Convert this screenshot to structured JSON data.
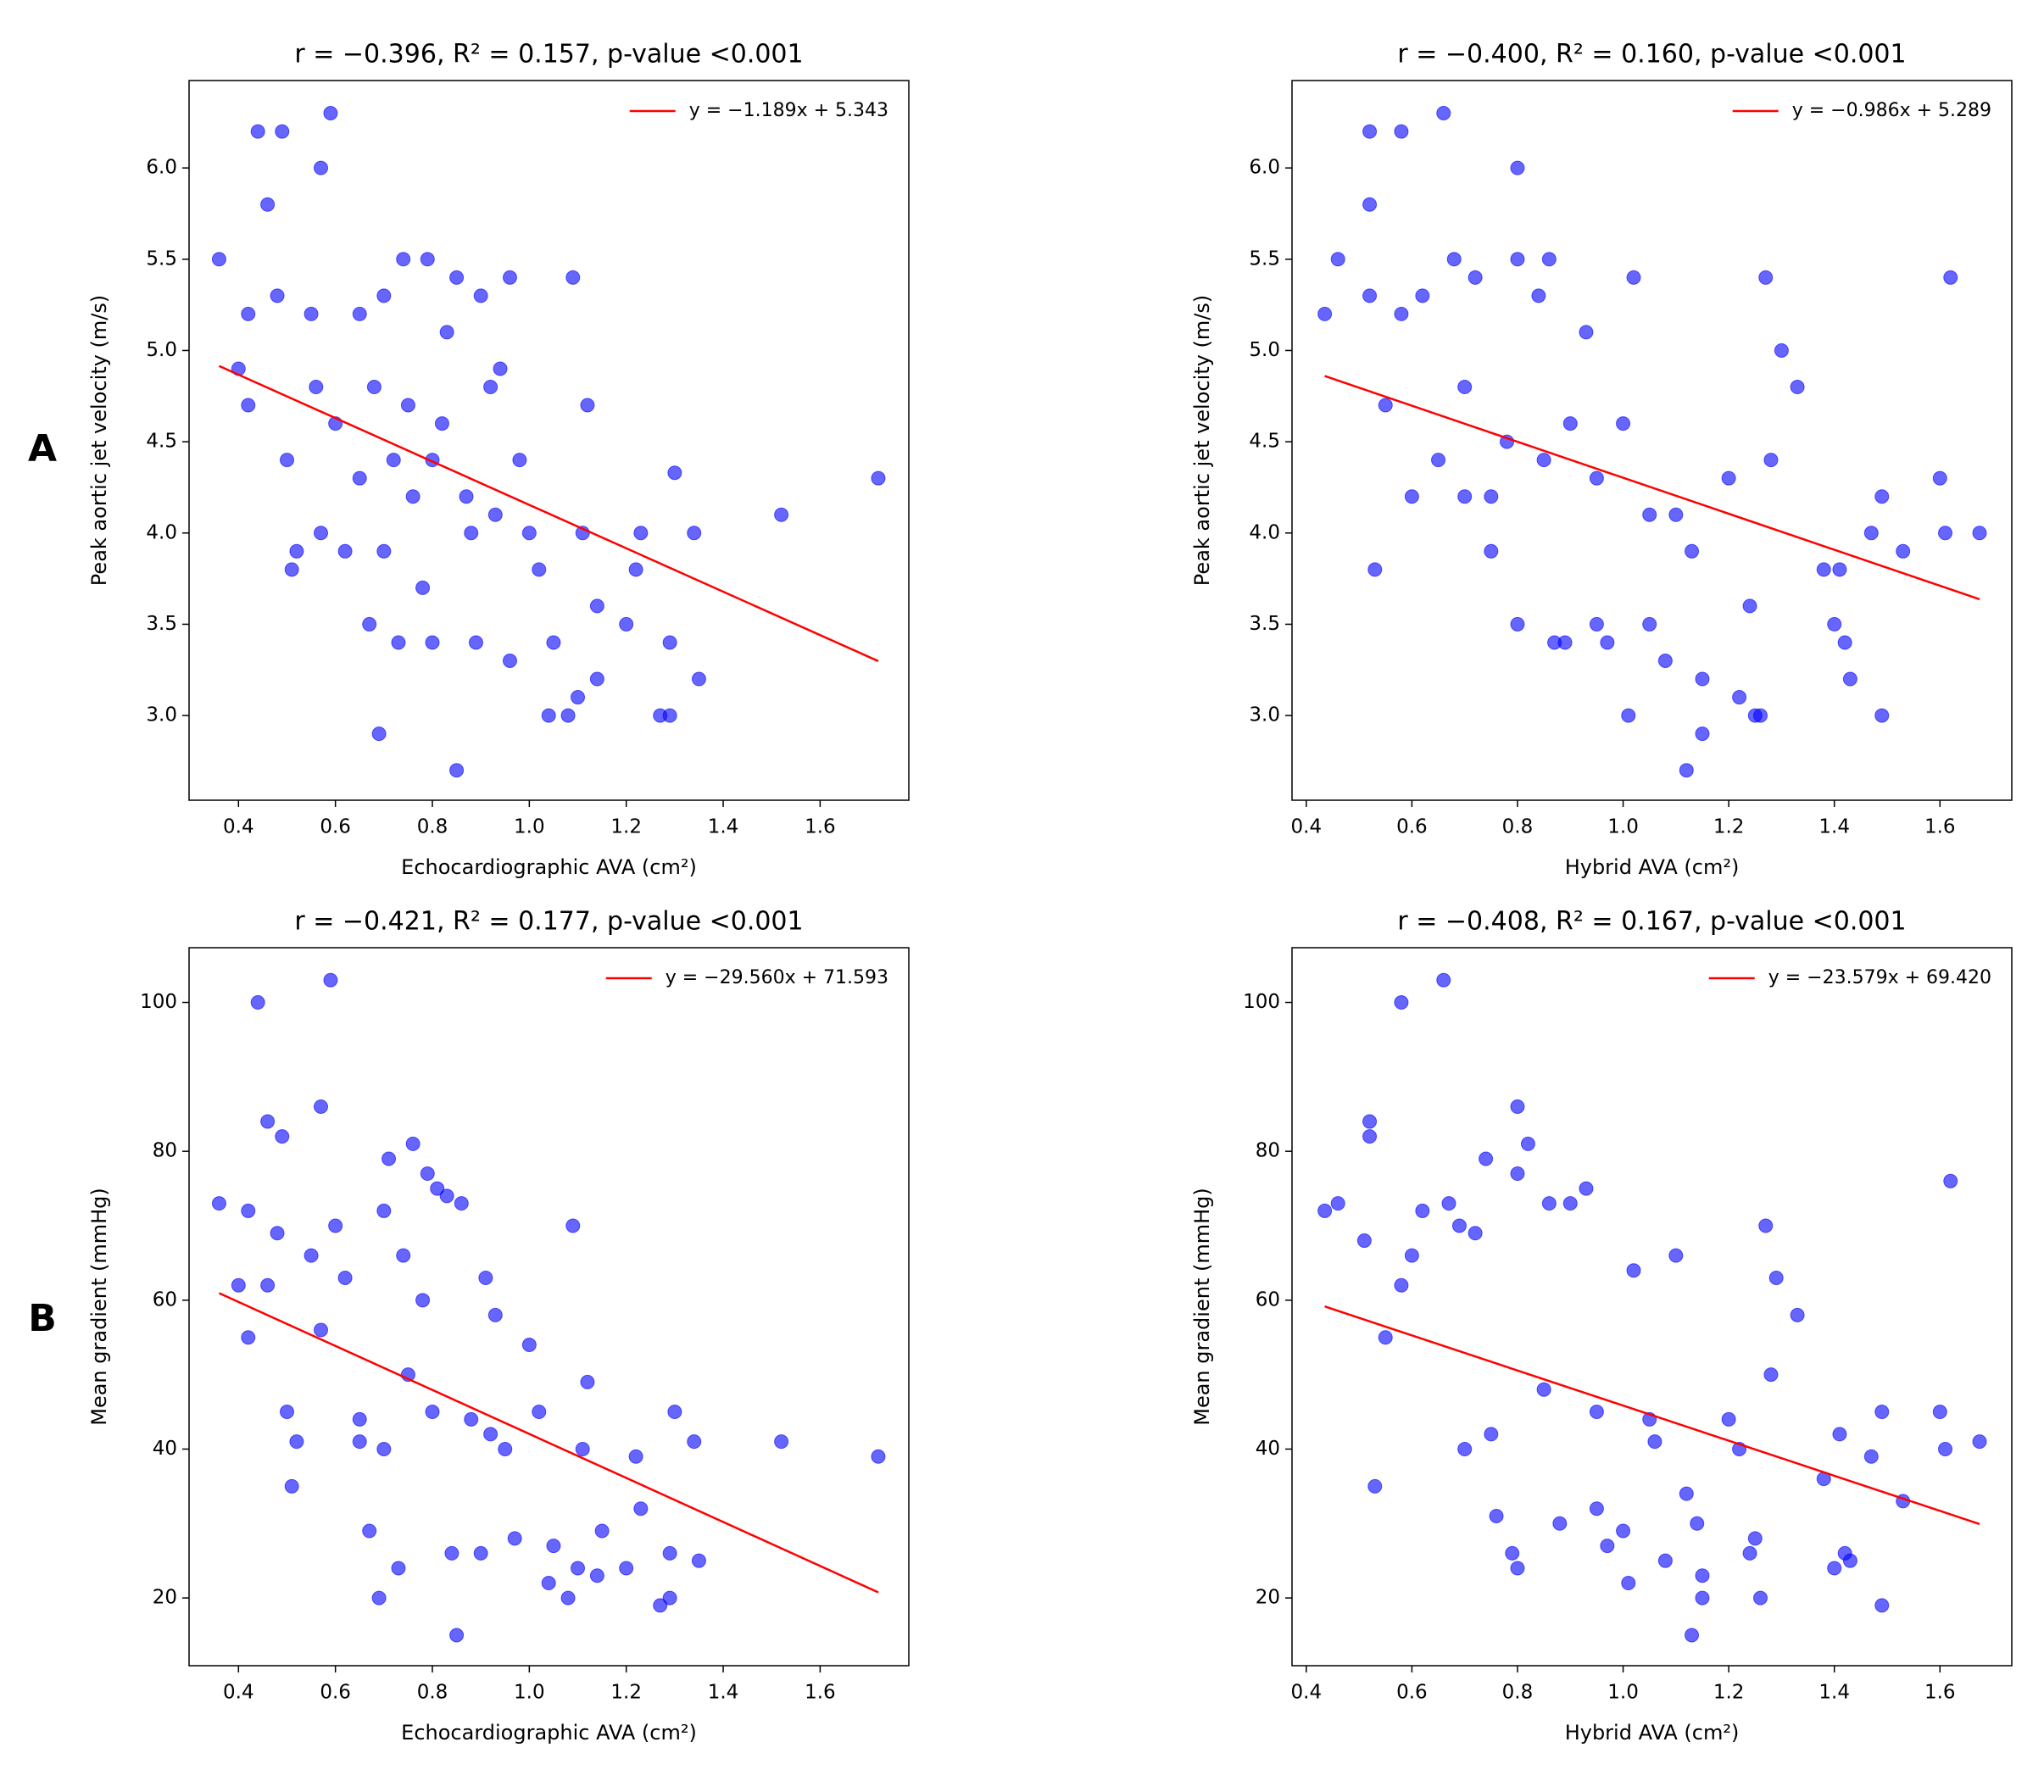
{
  "panel_labels": [
    "A",
    "B"
  ],
  "chart_data": [
    {
      "type": "scatter",
      "title": "r = −0.396, R² = 0.157, p-value <0.001",
      "xlabel": "Echocardiographic AVA (cm²)",
      "ylabel": "Peak aortic jet velocity (m/s)",
      "xlim": [
        0.298,
        1.783
      ],
      "ylim": [
        2.536,
        6.479
      ],
      "xticks": [
        0.4,
        0.6,
        0.8,
        {
          "value": 1,
          "label": "1.0"
        },
        1.2,
        1.4,
        1.6
      ],
      "yticks": [
        {
          "value": 3,
          "label": "3.0"
        },
        3.5,
        {
          "value": 4,
          "label": "4.0"
        },
        4.5,
        {
          "value": 5,
          "label": "5.0"
        },
        5.5,
        {
          "value": 6,
          "label": "6.0"
        }
      ],
      "color": "#0000ff",
      "legend": "upper right",
      "x": [
        0.36,
        0.44,
        0.49,
        0.46,
        0.57,
        0.59,
        0.4,
        0.42,
        0.42,
        0.48,
        0.5,
        0.51,
        0.52,
        0.55,
        0.56,
        0.57,
        0.6,
        0.62,
        0.65,
        0.67,
        0.69,
        0.7,
        0.72,
        0.73,
        0.74,
        0.76,
        0.78,
        0.79,
        0.8,
        0.82,
        0.83,
        0.85,
        0.85,
        0.87,
        0.89,
        0.9,
        0.92,
        0.94,
        0.96,
        0.96,
        0.98,
        1.0,
        1.02,
        1.04,
        1.05,
        1.08,
        1.09,
        1.1,
        1.11,
        1.12,
        1.14,
        1.14,
        1.2,
        1.22,
        1.23,
        1.27,
        1.29,
        1.29,
        1.3,
        1.34,
        1.35,
        1.52,
        1.72,
        0.65,
        0.75,
        0.88,
        0.93,
        0.7,
        0.8,
        0.68
      ],
      "y": [
        5.5,
        6.2,
        6.2,
        5.8,
        6.0,
        6.3,
        4.9,
        5.2,
        4.7,
        5.3,
        4.4,
        3.8,
        3.9,
        5.2,
        4.8,
        4.0,
        4.6,
        3.9,
        5.2,
        3.5,
        2.9,
        5.3,
        4.4,
        3.4,
        5.5,
        4.2,
        3.7,
        5.5,
        3.4,
        4.6,
        5.1,
        2.7,
        5.4,
        4.2,
        3.4,
        5.3,
        4.8,
        4.9,
        3.3,
        5.4,
        4.4,
        4.0,
        3.8,
        3.0,
        3.4,
        3.0,
        5.4,
        3.1,
        4.0,
        4.7,
        3.2,
        3.6,
        3.5,
        3.8,
        4.0,
        3.0,
        3.0,
        3.4,
        4.33,
        4.0,
        3.2,
        4.1,
        4.3,
        4.3,
        4.7,
        4.0,
        4.1,
        3.9,
        4.4,
        4.8
      ],
      "fit": {
        "name": "y = −1.189x + 5.343",
        "color": "#ff0000",
        "x": [
          0.36,
          1.72
        ],
        "y": [
          4.915,
          3.298
        ]
      }
    },
    {
      "type": "scatter",
      "title": "r = −0.400, R² = 0.160, p-value <0.001",
      "xlabel": "Hybrid AVA (cm²)",
      "ylabel": "Peak aortic jet velocity (m/s)",
      "xlim": [
        0.373,
        1.736
      ],
      "ylim": [
        2.536,
        6.479
      ],
      "xticks": [
        0.4,
        0.6,
        0.8,
        {
          "value": 1,
          "label": "1.0"
        },
        1.2,
        1.4,
        1.6
      ],
      "yticks": [
        {
          "value": 3,
          "label": "3.0"
        },
        3.5,
        {
          "value": 4,
          "label": "4.0"
        },
        4.5,
        {
          "value": 5,
          "label": "5.0"
        },
        5.5,
        {
          "value": 6,
          "label": "6.0"
        }
      ],
      "color": "#0000ff",
      "legend": "upper right",
      "x": [
        0.435,
        0.46,
        0.52,
        0.58,
        0.52,
        0.66,
        0.8,
        0.53,
        0.52,
        0.55,
        0.58,
        0.6,
        0.62,
        0.65,
        0.68,
        0.7,
        0.72,
        0.75,
        0.78,
        0.8,
        0.8,
        0.84,
        0.86,
        0.87,
        0.89,
        0.9,
        0.93,
        0.95,
        0.97,
        1.0,
        1.01,
        1.02,
        1.05,
        1.08,
        1.1,
        1.12,
        1.13,
        1.15,
        1.15,
        1.2,
        1.22,
        1.24,
        1.25,
        1.26,
        1.27,
        1.28,
        1.3,
        1.33,
        1.38,
        1.4,
        1.41,
        1.42,
        1.43,
        1.47,
        1.49,
        1.49,
        1.53,
        1.6,
        1.61,
        1.62,
        1.675,
        0.75,
        0.85,
        0.95,
        1.05,
        0.7
      ],
      "y": [
        5.2,
        5.5,
        6.2,
        6.2,
        5.8,
        6.3,
        6.0,
        3.8,
        5.3,
        4.7,
        5.2,
        4.2,
        5.3,
        4.4,
        5.5,
        4.8,
        5.4,
        3.9,
        4.5,
        5.5,
        3.5,
        5.3,
        5.5,
        3.4,
        3.4,
        4.6,
        5.1,
        3.5,
        3.4,
        4.6,
        3.0,
        5.4,
        3.5,
        3.3,
        4.1,
        2.7,
        3.9,
        3.2,
        2.9,
        4.3,
        3.1,
        3.6,
        3.0,
        3.0,
        5.4,
        4.4,
        5.0,
        4.8,
        3.8,
        3.5,
        3.8,
        3.4,
        3.2,
        4.0,
        4.2,
        3.0,
        3.9,
        4.3,
        4.0,
        5.4,
        4.0,
        4.2,
        4.4,
        4.3,
        4.1,
        4.2
      ],
      "fit": {
        "name": "y = −0.986x + 5.289",
        "color": "#ff0000",
        "x": [
          0.435,
          1.675
        ],
        "y": [
          4.86,
          3.637
        ]
      }
    },
    {
      "type": "scatter",
      "title": "r = −0.421, R² = 0.177, p-value <0.001",
      "xlabel": "Echocardiographic AVA (cm²)",
      "ylabel": "Mean gradient (mmHg)",
      "xlim": [
        0.298,
        1.783
      ],
      "ylim": [
        10.9,
        107.35
      ],
      "xticks": [
        0.4,
        0.6,
        0.8,
        {
          "value": 1,
          "label": "1.0"
        },
        1.2,
        1.4,
        1.6
      ],
      "yticks": [
        20,
        40,
        60,
        80,
        100
      ],
      "color": "#0000ff",
      "legend": "upper right",
      "x": [
        0.36,
        0.4,
        0.42,
        0.42,
        0.44,
        0.46,
        0.46,
        0.48,
        0.49,
        0.5,
        0.51,
        0.52,
        0.55,
        0.57,
        0.57,
        0.59,
        0.6,
        0.62,
        0.65,
        0.67,
        0.69,
        0.7,
        0.71,
        0.73,
        0.74,
        0.76,
        0.78,
        0.79,
        0.81,
        0.83,
        0.84,
        0.85,
        0.86,
        0.88,
        0.9,
        0.91,
        0.93,
        0.95,
        0.97,
        1.0,
        1.02,
        1.04,
        1.05,
        1.08,
        1.09,
        1.1,
        1.11,
        1.12,
        1.14,
        1.15,
        1.2,
        1.22,
        1.23,
        1.27,
        1.29,
        1.29,
        1.3,
        1.34,
        1.35,
        1.52,
        1.72,
        0.65,
        0.75,
        0.8,
        0.92,
        0.7
      ],
      "y": [
        73,
        62,
        72,
        55,
        100,
        84,
        62,
        69,
        82,
        45,
        35,
        41,
        66,
        86,
        56,
        103,
        70,
        63,
        44,
        29,
        20,
        72,
        79,
        24,
        66,
        81,
        60,
        77,
        75,
        74,
        26,
        15,
        73,
        44,
        26,
        63,
        58,
        40,
        28,
        54,
        45,
        22,
        27,
        20,
        70,
        24,
        40,
        49,
        23,
        29,
        24,
        39,
        32,
        19,
        20,
        26,
        45,
        41,
        25,
        41,
        39,
        41,
        50,
        45,
        42,
        40
      ],
      "fit": {
        "name": "y = −29.560x + 71.593",
        "color": "#ff0000",
        "x": [
          0.36,
          1.72
        ],
        "y": [
          60.95,
          20.75
        ]
      }
    },
    {
      "type": "scatter",
      "title": "r = −0.408, R² = 0.167, p-value <0.001",
      "xlabel": "Hybrid AVA (cm²)",
      "ylabel": "Mean gradient (mmHg)",
      "xlim": [
        0.373,
        1.736
      ],
      "ylim": [
        10.9,
        107.35
      ],
      "xticks": [
        0.4,
        0.6,
        0.8,
        {
          "value": 1,
          "label": "1.0"
        },
        1.2,
        1.4,
        1.6
      ],
      "yticks": [
        20,
        40,
        60,
        80,
        100
      ],
      "color": "#0000ff",
      "legend": "upper right",
      "x": [
        0.435,
        0.46,
        0.51,
        0.52,
        0.52,
        0.53,
        0.55,
        0.58,
        0.58,
        0.6,
        0.62,
        0.66,
        0.67,
        0.69,
        0.72,
        0.74,
        0.76,
        0.79,
        0.8,
        0.8,
        0.8,
        0.82,
        0.86,
        0.88,
        0.9,
        0.93,
        0.95,
        0.97,
        1.0,
        1.01,
        1.02,
        1.06,
        1.08,
        1.1,
        1.12,
        1.13,
        1.14,
        1.15,
        1.15,
        1.2,
        1.22,
        1.24,
        1.25,
        1.26,
        1.27,
        1.28,
        1.29,
        1.33,
        1.38,
        1.4,
        1.41,
        1.42,
        1.43,
        1.47,
        1.49,
        1.49,
        1.53,
        1.6,
        1.61,
        1.62,
        1.675,
        0.75,
        0.85,
        0.95,
        1.05,
        0.7
      ],
      "y": [
        72,
        73,
        68,
        84,
        82,
        35,
        55,
        100,
        62,
        66,
        72,
        103,
        73,
        70,
        69,
        79,
        31,
        26,
        24,
        86,
        77,
        81,
        73,
        30,
        73,
        75,
        32,
        27,
        29,
        22,
        64,
        41,
        25,
        66,
        34,
        15,
        30,
        23,
        20,
        44,
        40,
        26,
        28,
        20,
        70,
        50,
        63,
        58,
        36,
        24,
        42,
        26,
        25,
        39,
        45,
        19,
        33,
        45,
        40,
        76,
        41,
        42,
        48,
        45,
        44,
        40
      ],
      "fit": {
        "name": "y = −23.579x + 69.420",
        "color": "#ff0000",
        "x": [
          0.435,
          1.675
        ],
        "y": [
          59.16,
          29.93
        ]
      }
    }
  ]
}
